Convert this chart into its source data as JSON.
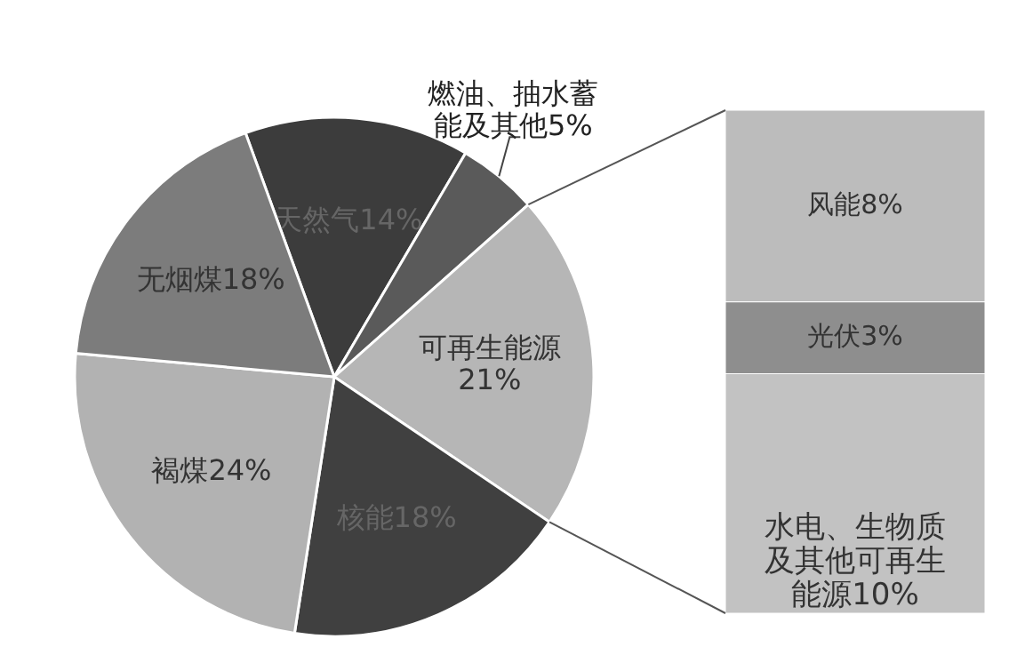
{
  "chart_data": [
    {
      "type": "pie",
      "categories": [
        "天然气",
        "燃油、抽水蓄能及其他",
        "可再生能源",
        "核能",
        "褐煤",
        "无烟煤"
      ],
      "values": [
        14,
        5,
        21,
        18,
        24,
        18
      ],
      "value_labels": [
        "14%",
        "5%",
        "21%",
        "18%",
        "24%",
        "18%"
      ],
      "colors": [
        "#3c3c3c",
        "#5a5a5a",
        "#b6b6b6",
        "#404040",
        "#b2b2b2",
        "#7c7c7c"
      ]
    },
    {
      "type": "bar",
      "stacked": true,
      "categories": [
        null
      ],
      "series": [
        {
          "name": "水电、生物质及其他可再生能源",
          "color": "#c2c2c2",
          "values": [
            10
          ],
          "value_labels": [
            "10%"
          ]
        },
        {
          "name": "光伏",
          "color": "#8e8e8e",
          "values": [
            3
          ],
          "value_labels": [
            "3%"
          ]
        },
        {
          "name": "风能",
          "color": "#bcbcbc",
          "values": [
            8
          ],
          "value_labels": [
            "8%"
          ]
        }
      ]
    }
  ]
}
